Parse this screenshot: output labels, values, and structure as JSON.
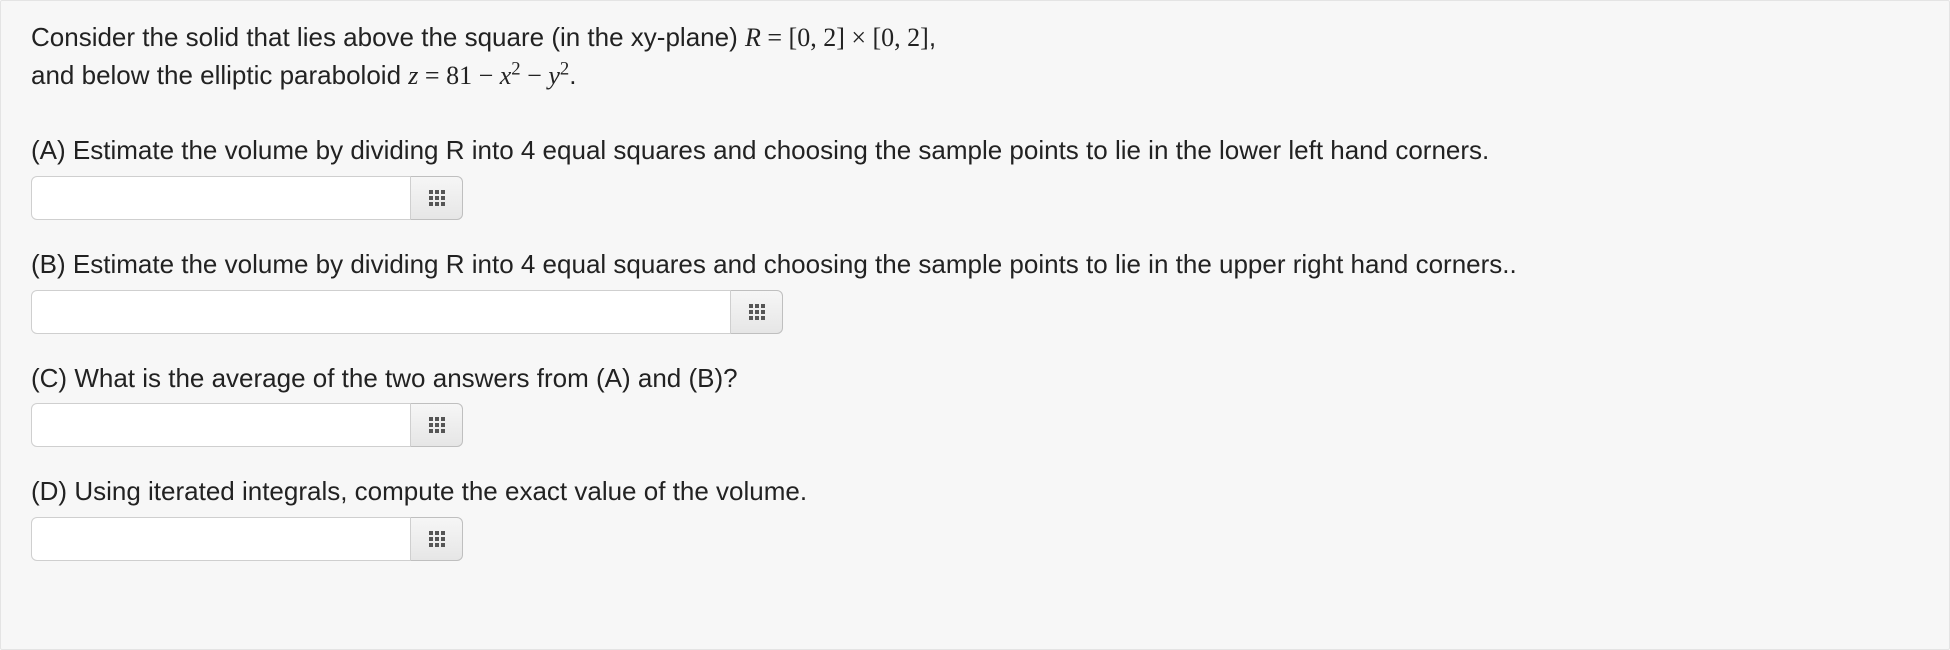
{
  "intro": {
    "line1_pre": "Consider the solid that lies above the square (in the xy-plane) ",
    "R": "R",
    "eq": " = ",
    "interval": "[0, 2] × [0, 2]",
    "line1_post": ",",
    "line2_pre": "and below the elliptic paraboloid ",
    "z": "z",
    "eq2": " = ",
    "const": "81 − ",
    "x": "x",
    "sq1": "2",
    "minus": " − ",
    "y": "y",
    "sq2": "2",
    "line2_post": "."
  },
  "questions": {
    "a": {
      "text": "(A) Estimate the volume by dividing R into 4 equal squares and choosing the sample points to lie in the lower left hand corners.",
      "value": "",
      "input_width_class": "input-a"
    },
    "b": {
      "text": "(B) Estimate the volume by dividing R into 4 equal squares and choosing the sample points to lie in the upper right hand corners..",
      "value": "",
      "input_width_class": "input-b"
    },
    "c": {
      "text": "(C) What is the average of the two answers from (A) and (B)?",
      "value": "",
      "input_width_class": "input-c"
    },
    "d": {
      "text": "(D) Using iterated integrals, compute the exact value of the volume.",
      "value": "",
      "input_width_class": "input-d"
    }
  },
  "colors": {
    "panel_bg": "#f7f7f7",
    "panel_border": "#e4e4e4",
    "text": "#222222",
    "input_border": "#cfcfcf",
    "btn_border": "#bfbfbf",
    "btn_top": "#f6f6f6",
    "btn_bottom": "#e6e6e6",
    "icon_dot": "#555555"
  }
}
